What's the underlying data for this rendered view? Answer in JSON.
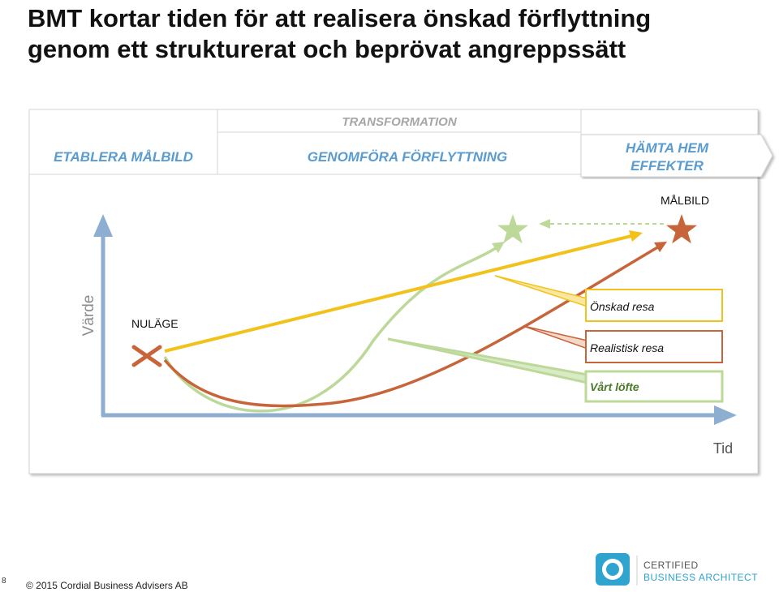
{
  "title": {
    "line1": "BMT kortar tiden för att realisera önskad förflyttning",
    "line2": "genom ett strukturerat och beprövat angreppssätt"
  },
  "phases": {
    "transformation_label": "TRANSFORMATION",
    "establish": "ETABLERA MÅLBILD",
    "execute": "GENOMFÖRA FÖRFLYTTNING",
    "harvest_line1": "HÄMTA HEM",
    "harvest_line2": "EFFEKTER"
  },
  "axes": {
    "y_label": "Värde",
    "x_label": "Tid"
  },
  "points": {
    "current": "NULÄGE",
    "target": "MÅLBILD"
  },
  "legend": [
    {
      "label": "Önskad resa",
      "color": "#f2c21a"
    },
    {
      "label": "Realistisk resa",
      "color": "#c8643a"
    },
    {
      "label": "Vårt löfte",
      "color": "#bcd99a"
    }
  ],
  "colors": {
    "axis": "#8eaed1",
    "phase_text": "#5a9bd0",
    "star_target": "#c8643a",
    "star_promise": "#bcd99a",
    "promise_text": "#4a7a2a"
  },
  "footer": {
    "page_number": "8",
    "copyright": "© 2015 Cordial Business Advisers AB"
  },
  "logo": {
    "line1": "CERTIFIED",
    "line2": "BUSINESS ARCHITECT"
  }
}
